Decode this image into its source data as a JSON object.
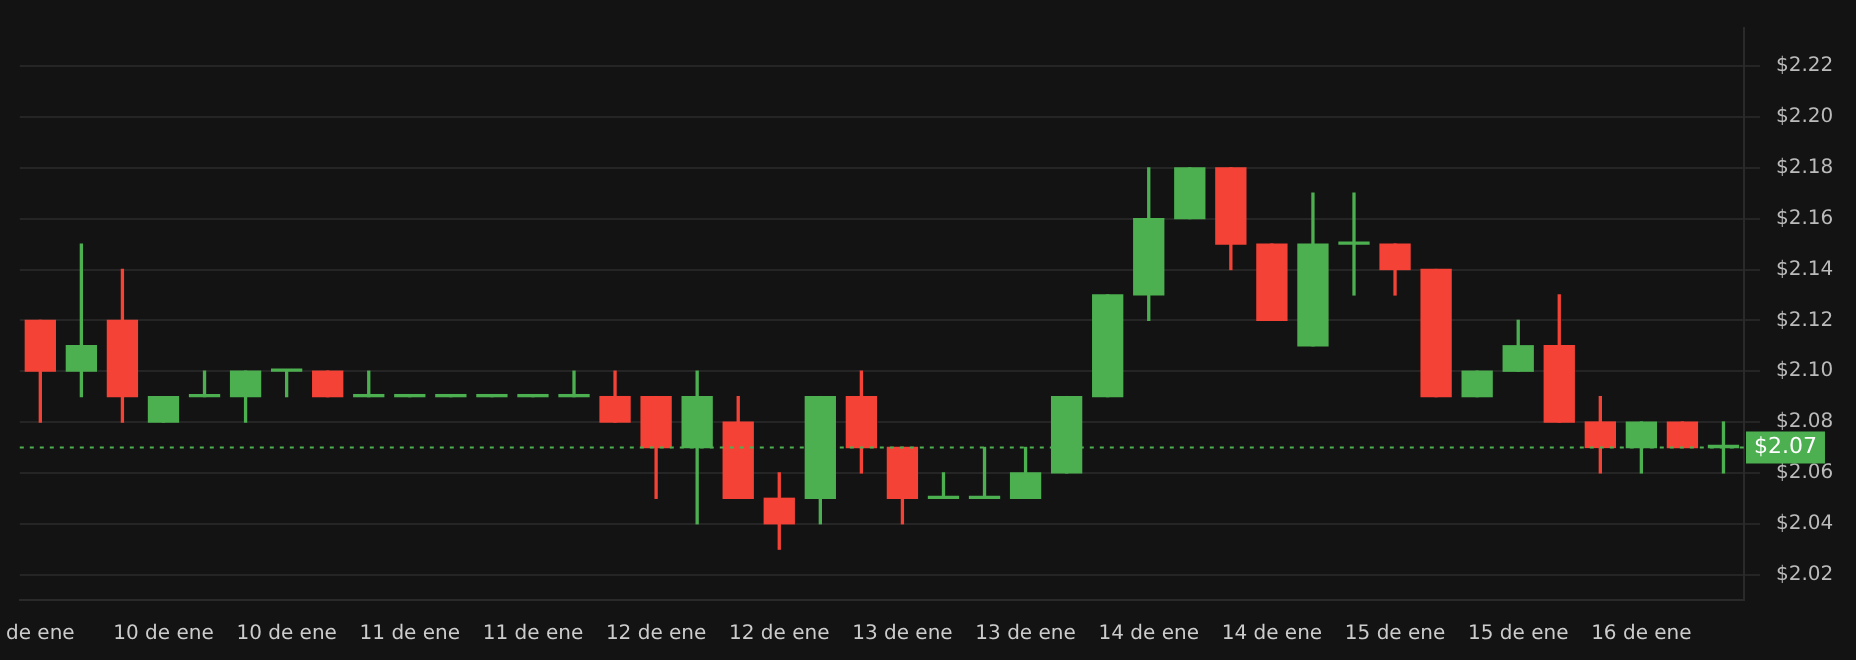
{
  "chart_data": {
    "type": "candlestick",
    "categories": [
      "de ene",
      null,
      null,
      "10 de ene",
      null,
      null,
      "10 de ene",
      null,
      null,
      "11 de ene",
      null,
      null,
      "11 de ene",
      null,
      null,
      "12 de ene",
      null,
      null,
      "12 de ene",
      null,
      null,
      "13 de ene",
      null,
      null,
      "13 de ene",
      null,
      null,
      "14 de ene",
      null,
      null,
      "14 de ene",
      null,
      null,
      "15 de ene",
      null,
      null,
      "15 de ene",
      null,
      null,
      "16 de ene",
      null,
      null
    ],
    "ohlc": [
      [
        2.12,
        2.12,
        2.08,
        2.1
      ],
      [
        2.1,
        2.15,
        2.09,
        2.11
      ],
      [
        2.12,
        2.14,
        2.08,
        2.09
      ],
      [
        2.08,
        2.09,
        2.08,
        2.09
      ],
      [
        2.09,
        2.1,
        2.09,
        2.09
      ],
      [
        2.09,
        2.1,
        2.08,
        2.1
      ],
      [
        2.1,
        2.1,
        2.09,
        2.1
      ],
      [
        2.1,
        2.1,
        2.09,
        2.09
      ],
      [
        2.09,
        2.1,
        2.09,
        2.09
      ],
      [
        2.09,
        2.09,
        2.09,
        2.09
      ],
      [
        2.09,
        2.09,
        2.09,
        2.09
      ],
      [
        2.09,
        2.09,
        2.09,
        2.09
      ],
      [
        2.09,
        2.09,
        2.09,
        2.09
      ],
      [
        2.09,
        2.1,
        2.09,
        2.09
      ],
      [
        2.09,
        2.1,
        2.08,
        2.08
      ],
      [
        2.09,
        2.09,
        2.05,
        2.07
      ],
      [
        2.07,
        2.1,
        2.04,
        2.09
      ],
      [
        2.08,
        2.09,
        2.05,
        2.05
      ],
      [
        2.05,
        2.06,
        2.03,
        2.04
      ],
      [
        2.05,
        2.09,
        2.04,
        2.09
      ],
      [
        2.09,
        2.1,
        2.06,
        2.07
      ],
      [
        2.07,
        2.07,
        2.04,
        2.05
      ],
      [
        2.05,
        2.06,
        2.05,
        2.05
      ],
      [
        2.05,
        2.07,
        2.05,
        2.05
      ],
      [
        2.05,
        2.07,
        2.05,
        2.06
      ],
      [
        2.06,
        2.09,
        2.06,
        2.09
      ],
      [
        2.09,
        2.13,
        2.09,
        2.13
      ],
      [
        2.13,
        2.18,
        2.12,
        2.16
      ],
      [
        2.16,
        2.18,
        2.16,
        2.18
      ],
      [
        2.18,
        2.18,
        2.14,
        2.15
      ],
      [
        2.15,
        2.15,
        2.12,
        2.12
      ],
      [
        2.11,
        2.17,
        2.11,
        2.15
      ],
      [
        2.15,
        2.17,
        2.13,
        2.15
      ],
      [
        2.15,
        2.15,
        2.13,
        2.14
      ],
      [
        2.14,
        2.14,
        2.09,
        2.09
      ],
      [
        2.09,
        2.1,
        2.09,
        2.1
      ],
      [
        2.1,
        2.12,
        2.1,
        2.11
      ],
      [
        2.11,
        2.13,
        2.08,
        2.08
      ],
      [
        2.08,
        2.09,
        2.06,
        2.07
      ],
      [
        2.07,
        2.08,
        2.06,
        2.08
      ],
      [
        2.08,
        2.08,
        2.07,
        2.07
      ],
      [
        2.07,
        2.08,
        2.06,
        2.07
      ]
    ],
    "colors": [
      "#f44336",
      "#4caf50",
      "#f44336",
      "#4caf50",
      "#4caf50",
      "#4caf50",
      "#4caf50",
      "#f44336",
      "#4caf50",
      "#4caf50",
      "#4caf50",
      "#4caf50",
      "#4caf50",
      "#4caf50",
      "#f44336",
      "#f44336",
      "#4caf50",
      "#f44336",
      "#f44336",
      "#4caf50",
      "#f44336",
      "#f44336",
      "#4caf50",
      "#4caf50",
      "#4caf50",
      "#4caf50",
      "#4caf50",
      "#4caf50",
      "#4caf50",
      "#f44336",
      "#f44336",
      "#4caf50",
      "#4caf50",
      "#f44336",
      "#f44336",
      "#4caf50",
      "#4caf50",
      "#f44336",
      "#f44336",
      "#4caf50",
      "#f44336",
      "#4caf50"
    ],
    "ylim": [
      2.01,
      2.235
    ],
    "yticks": [
      {
        "value": 2.02,
        "label": "$2.02"
      },
      {
        "value": 2.04,
        "label": "$2.04"
      },
      {
        "value": 2.06,
        "label": "$2.06"
      },
      {
        "value": 2.08,
        "label": "$2.08"
      },
      {
        "value": 2.1,
        "label": "$2.10"
      },
      {
        "value": 2.12,
        "label": "$2.12"
      },
      {
        "value": 2.14,
        "label": "$2.14"
      },
      {
        "value": 2.16,
        "label": "$2.16"
      },
      {
        "value": 2.18,
        "label": "$2.18"
      },
      {
        "value": 2.2,
        "label": "$2.20"
      },
      {
        "value": 2.22,
        "label": "$2.22"
      }
    ],
    "ref_lines": [
      {
        "axis": "y",
        "value": 2.07,
        "label": "$2.07",
        "color": "#4caf50",
        "line_style": "dotted"
      }
    ],
    "grid": "y",
    "legend": false
  }
}
